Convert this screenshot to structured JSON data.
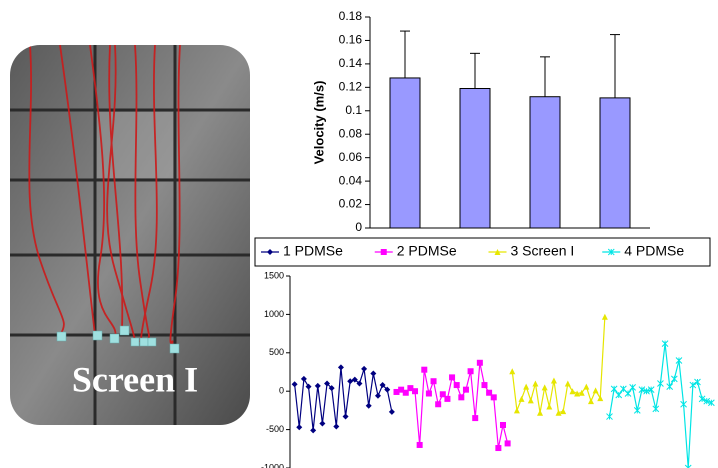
{
  "image": {
    "label": "Screen I"
  },
  "chart_data": [
    {
      "type": "bar",
      "y_label": "Velocity (m/s)",
      "categories": [
        null,
        null,
        null,
        null
      ],
      "values": [
        0.128,
        0.119,
        0.112,
        0.111
      ],
      "errors": [
        0.04,
        0.03,
        0.034,
        0.054
      ],
      "color": "#9999ff",
      "ylim": [
        0,
        0.18
      ],
      "yticks": [
        0,
        0.02,
        0.04,
        0.06,
        0.08,
        0.1,
        0.12,
        0.14,
        0.16,
        0.18
      ]
    },
    {
      "type": "line",
      "legend": "top",
      "xlim": [
        0,
        92
      ],
      "ylim": [
        -1000,
        1500
      ],
      "yticks": [
        -1000,
        -500,
        0,
        500,
        1000,
        1500
      ],
      "series": [
        {
          "name": "1 PDMSe",
          "color": "#000080",
          "marker": "diamond",
          "x": [
            1,
            2,
            3,
            4,
            5,
            6,
            7,
            8,
            9,
            10,
            11,
            12,
            13,
            14,
            15,
            16,
            17,
            18,
            19,
            20,
            21,
            22
          ],
          "values": [
            90,
            -470,
            160,
            60,
            -510,
            70,
            -420,
            100,
            40,
            -460,
            310,
            -330,
            130,
            150,
            100,
            290,
            -190,
            230,
            -60,
            80,
            20,
            -270
          ]
        },
        {
          "name": "2 PDMSe",
          "color": "#ff00ff",
          "marker": "square",
          "x": [
            23,
            24,
            25,
            26,
            27,
            28,
            29,
            30,
            31,
            32,
            33,
            34,
            35,
            36,
            37,
            38,
            39,
            40,
            41,
            42,
            43,
            44,
            45,
            46,
            47
          ],
          "values": [
            -10,
            20,
            -20,
            40,
            0,
            -700,
            280,
            -30,
            130,
            -170,
            -40,
            -100,
            180,
            80,
            -80,
            20,
            260,
            -350,
            370,
            80,
            -20,
            -80,
            -740,
            -440,
            -680
          ]
        },
        {
          "name": "3 Screen I",
          "color": "#e6e600",
          "marker": "triangle",
          "x": [
            48,
            49,
            50,
            51,
            52,
            53,
            54,
            55,
            56,
            57,
            58,
            59,
            60,
            61,
            62,
            63,
            64,
            65,
            66,
            67,
            68
          ],
          "values": [
            260,
            -250,
            -100,
            60,
            -120,
            100,
            -280,
            50,
            -200,
            140,
            -280,
            -260,
            100,
            0,
            -30,
            -20,
            60,
            -130,
            10,
            -90,
            970
          ]
        },
        {
          "name": "4 PDMSe",
          "color": "#00e5e5",
          "marker": "star",
          "x": [
            69,
            70,
            71,
            72,
            73,
            74,
            75,
            76,
            77,
            78,
            79,
            80,
            81,
            82,
            83,
            84,
            85,
            86,
            87,
            88,
            89,
            90,
            91
          ],
          "values": [
            -330,
            30,
            -50,
            30,
            -30,
            50,
            -250,
            20,
            0,
            20,
            -230,
            100,
            620,
            60,
            160,
            400,
            -170,
            -1000,
            80,
            120,
            -100,
            -130,
            -150
          ]
        }
      ]
    }
  ]
}
